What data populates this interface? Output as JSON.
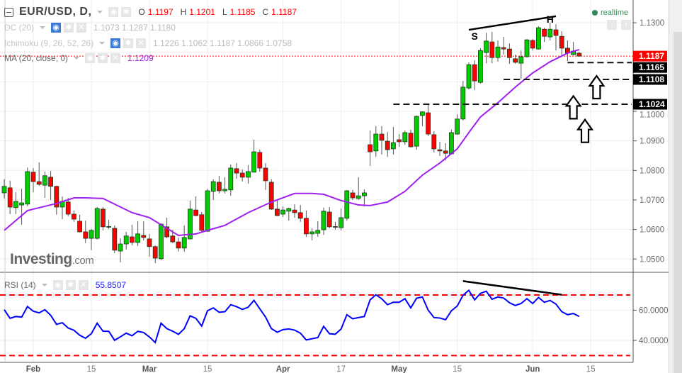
{
  "header": {
    "symbol": "EUR/USD, D,",
    "o_label": "O",
    "o": "1.1197",
    "h_label": "H",
    "h": "1.1201",
    "l_label": "L",
    "l": "1.1185",
    "c_label": "C",
    "c": "1.1187"
  },
  "indicators": {
    "dc": {
      "name": "DC (20)",
      "values": "1.1073 1.1287 1.1180"
    },
    "ichimoku": {
      "name": "Ichimoku (9, 26, 52, 26)",
      "values": "1.1226 1.1062 1.1187 1.0866 1.0758"
    },
    "ma": {
      "name": "MA (20, close, 0)",
      "value": "1.1209"
    },
    "rsi": {
      "name": "RSI (14)",
      "value": "55.8507"
    }
  },
  "realtime": "realtime",
  "logo": {
    "main": "Investing",
    "suffix": ".com"
  },
  "icons": {
    "eye": "eye-icon",
    "gear": "gear-icon",
    "close": "close-icon",
    "collapse": "minus-square-icon",
    "dropdown": "caret-down-icon",
    "arrow_down": "arrow-down-icon",
    "arrow_updown": "arrows-vertical-icon"
  },
  "colors": {
    "up": "#00cc00",
    "down": "#ff0000",
    "ma": "#a020f0",
    "rsi": "#0000ff",
    "rsi_levels": "#ff0000",
    "current_price": "#ff0000"
  },
  "chart_data": {
    "type": "candlestick",
    "price_axis": {
      "range": [
        1.0455,
        1.1377
      ],
      "ticks": [
        "1.1300",
        "1.1000",
        "1.0900",
        "1.0800",
        "1.0700",
        "1.0600",
        "1.0500"
      ],
      "grid_values": [
        1.13,
        1.12,
        1.11,
        1.1,
        1.09,
        1.08,
        1.07,
        1.06,
        1.05
      ]
    },
    "price_labels": [
      {
        "value": 1.1187,
        "text": "1.1187",
        "style": "current"
      },
      {
        "value": 1.1165,
        "text": "1.1165",
        "style": "level"
      },
      {
        "value": 1.1108,
        "text": "1.1108",
        "style": "level"
      },
      {
        "value": 1.1024,
        "text": "1.1024",
        "style": "level"
      }
    ],
    "time_ticks": [
      {
        "date": "2017-02-01",
        "text": "Feb",
        "major": true
      },
      {
        "date": "2017-02-15",
        "text": "15",
        "major": false
      },
      {
        "date": "2017-03-01",
        "text": "Mar",
        "major": true
      },
      {
        "date": "2017-03-15",
        "text": "15",
        "major": false
      },
      {
        "date": "2017-04-03",
        "text": "Apr",
        "major": true
      },
      {
        "date": "2017-04-17",
        "text": "17",
        "major": false
      },
      {
        "date": "2017-05-01",
        "text": "May",
        "major": true
      },
      {
        "date": "2017-05-15",
        "text": "15",
        "major": false
      },
      {
        "date": "2017-06-01",
        "text": "Jun",
        "major": true
      },
      {
        "date": "2017-06-15",
        "text": "15",
        "major": false
      }
    ],
    "candles_fields": [
      "date",
      "open",
      "high",
      "low",
      "close"
    ],
    "candles": [
      [
        "2017-01-25",
        1.0724,
        1.077,
        1.0705,
        1.0746
      ],
      [
        "2017-01-26",
        1.0741,
        1.0765,
        1.0652,
        1.0676
      ],
      [
        "2017-01-27",
        1.0674,
        1.0726,
        1.0652,
        1.0695
      ],
      [
        "2017-01-30",
        1.0683,
        1.0738,
        1.0616,
        1.069
      ],
      [
        "2017-01-31",
        1.0686,
        1.081,
        1.0678,
        1.0796
      ],
      [
        "2017-02-01",
        1.0794,
        1.0808,
        1.0726,
        1.0762
      ],
      [
        "2017-02-02",
        1.0762,
        1.0827,
        1.0748,
        1.0753
      ],
      [
        "2017-02-03",
        1.075,
        1.0796,
        1.0707,
        1.0782
      ],
      [
        "2017-02-06",
        1.0777,
        1.0798,
        1.07,
        1.0746
      ],
      [
        "2017-02-07",
        1.0746,
        1.0748,
        1.065,
        1.0676
      ],
      [
        "2017-02-08",
        1.0676,
        1.0712,
        1.0635,
        1.0695
      ],
      [
        "2017-02-09",
        1.0693,
        1.0707,
        1.0645,
        1.0652
      ],
      [
        "2017-02-10",
        1.0652,
        1.0664,
        1.0626,
        1.0635
      ],
      [
        "2017-02-13",
        1.0628,
        1.065,
        1.059,
        1.0592
      ],
      [
        "2017-02-14",
        1.0592,
        1.063,
        1.0554,
        1.057
      ],
      [
        "2017-02-15",
        1.057,
        1.0602,
        1.053,
        1.0597
      ],
      [
        "2017-02-16",
        1.057,
        1.0676,
        1.0566,
        1.0671
      ],
      [
        "2017-02-17",
        1.0669,
        1.0676,
        1.0597,
        1.0609
      ],
      [
        "2017-02-20",
        1.0609,
        1.0633,
        1.0602,
        1.061
      ],
      [
        "2017-02-21",
        1.0604,
        1.0614,
        1.052,
        1.053
      ],
      [
        "2017-02-22",
        1.0527,
        1.057,
        1.0489,
        1.0551
      ],
      [
        "2017-02-23",
        1.0551,
        1.0592,
        1.0532,
        1.0578
      ],
      [
        "2017-02-24",
        1.0575,
        1.0616,
        1.0546,
        1.0556
      ],
      [
        "2017-02-27",
        1.0556,
        1.0628,
        1.0544,
        1.0585
      ],
      [
        "2017-02-28",
        1.058,
        1.0628,
        1.0563,
        1.0573
      ],
      [
        "2017-03-01",
        1.0568,
        1.0585,
        1.0508,
        1.0542
      ],
      [
        "2017-03-02",
        1.0542,
        1.0546,
        1.0486,
        1.0503
      ],
      [
        "2017-03-03",
        1.0501,
        1.0621,
        1.0496,
        1.0618
      ],
      [
        "2017-03-06",
        1.0609,
        1.064,
        1.057,
        1.0575
      ],
      [
        "2017-03-07",
        1.0578,
        1.0599,
        1.0554,
        1.0558
      ],
      [
        "2017-03-08",
        1.0558,
        1.0573,
        1.0525,
        1.0537
      ],
      [
        "2017-03-09",
        1.0537,
        1.0614,
        1.0525,
        1.0573
      ],
      [
        "2017-03-10",
        1.0568,
        1.0698,
        1.0566,
        1.0669
      ],
      [
        "2017-03-13",
        1.0666,
        1.0712,
        1.0645,
        1.0647
      ],
      [
        "2017-03-14",
        1.065,
        1.0659,
        1.0592,
        1.0597
      ],
      [
        "2017-03-15",
        1.0594,
        1.0738,
        1.0592,
        1.0731
      ],
      [
        "2017-03-16",
        1.0729,
        1.077,
        1.07,
        1.0762
      ],
      [
        "2017-03-17",
        1.076,
        1.0782,
        1.0722,
        1.0731
      ],
      [
        "2017-03-20",
        1.0731,
        1.0777,
        1.0722,
        1.0736
      ],
      [
        "2017-03-21",
        1.0734,
        1.082,
        1.0714,
        1.0808
      ],
      [
        "2017-03-22",
        1.0806,
        1.0825,
        1.0772,
        1.0791
      ],
      [
        "2017-03-23",
        1.0791,
        1.0803,
        1.0762,
        1.0777
      ],
      [
        "2017-03-24",
        1.0777,
        1.0818,
        1.0755,
        1.0796
      ],
      [
        "2017-03-27",
        1.0794,
        1.0904,
        1.0794,
        1.0863
      ],
      [
        "2017-03-28",
        1.0861,
        1.087,
        1.0796,
        1.0808
      ],
      [
        "2017-03-29",
        1.0808,
        1.0825,
        1.0734,
        1.0765
      ],
      [
        "2017-03-30",
        1.076,
        1.077,
        1.0666,
        1.0669
      ],
      [
        "2017-03-31",
        1.0669,
        1.0702,
        1.0645,
        1.0647
      ],
      [
        "2017-04-03",
        1.0652,
        1.0678,
        1.0642,
        1.0666
      ],
      [
        "2017-04-04",
        1.0662,
        1.0674,
        1.063,
        1.0671
      ],
      [
        "2017-04-05",
        1.0666,
        1.0686,
        1.064,
        1.0657
      ],
      [
        "2017-04-06",
        1.0657,
        1.0683,
        1.0626,
        1.0638
      ],
      [
        "2017-04-07",
        1.0638,
        1.0664,
        1.0575,
        1.0585
      ],
      [
        "2017-04-10",
        1.0585,
        1.0604,
        1.0563,
        1.0592
      ],
      [
        "2017-04-11",
        1.0587,
        1.0628,
        1.0575,
        1.0597
      ],
      [
        "2017-04-12",
        1.0599,
        1.0674,
        1.0582,
        1.0662
      ],
      [
        "2017-04-13",
        1.0659,
        1.0676,
        1.0604,
        1.0609
      ],
      [
        "2017-04-14",
        1.061,
        1.0626,
        1.06,
        1.0609
      ],
      [
        "2017-04-17",
        1.0606,
        1.0671,
        1.0597,
        1.064
      ],
      [
        "2017-04-18",
        1.0638,
        1.0734,
        1.063,
        1.0731
      ],
      [
        "2017-04-19",
        1.0724,
        1.0734,
        1.07,
        1.0707
      ],
      [
        "2017-04-20",
        1.0705,
        1.0777,
        1.07,
        1.0714
      ],
      [
        "2017-04-21",
        1.0714,
        1.0736,
        1.0678,
        1.0724
      ],
      [
        "2017-04-24",
        1.0887,
        1.0935,
        1.0815,
        1.0863
      ],
      [
        "2017-04-25",
        1.0866,
        1.095,
        1.0846,
        1.0923
      ],
      [
        "2017-04-26",
        1.0923,
        1.095,
        1.0854,
        1.0902
      ],
      [
        "2017-04-27",
        1.0899,
        1.093,
        1.0846,
        1.087
      ],
      [
        "2017-04-28",
        1.0873,
        1.0947,
        1.0854,
        1.0894
      ],
      [
        "2017-05-01",
        1.0904,
        1.0923,
        1.088,
        1.0897
      ],
      [
        "2017-05-02",
        1.0897,
        1.0935,
        1.0887,
        1.0928
      ],
      [
        "2017-05-03",
        1.0926,
        1.0938,
        1.0878,
        1.088
      ],
      [
        "2017-05-04",
        1.0882,
        1.0986,
        1.087,
        1.0983
      ],
      [
        "2017-05-05",
        1.0986,
        1.1,
        1.095,
        1.0998
      ],
      [
        "2017-05-08",
        1.0995,
        1.1024,
        1.0916,
        1.0923
      ],
      [
        "2017-05-09",
        1.0921,
        1.0933,
        1.0861,
        1.0873
      ],
      [
        "2017-05-10",
        1.087,
        1.0897,
        1.0849,
        1.0866
      ],
      [
        "2017-05-11",
        1.0866,
        1.0892,
        1.0834,
        1.0858
      ],
      [
        "2017-05-12",
        1.0856,
        1.0938,
        1.0854,
        1.0928
      ],
      [
        "2017-05-15",
        1.0923,
        1.099,
        1.0921,
        1.0974
      ],
      [
        "2017-05-16",
        1.0974,
        1.1103,
        1.0969,
        1.1082
      ],
      [
        "2017-05-17",
        1.1079,
        1.1166,
        1.1074,
        1.1158
      ],
      [
        "2017-05-18",
        1.1158,
        1.1173,
        1.1072,
        1.1103
      ],
      [
        "2017-05-19",
        1.1098,
        1.1214,
        1.1094,
        1.1206
      ],
      [
        "2017-05-22",
        1.1199,
        1.1266,
        1.1163,
        1.1238
      ],
      [
        "2017-05-23",
        1.1235,
        1.1269,
        1.1163,
        1.1182
      ],
      [
        "2017-05-24",
        1.1182,
        1.124,
        1.1168,
        1.1218
      ],
      [
        "2017-05-25",
        1.1216,
        1.1252,
        1.1192,
        1.1211
      ],
      [
        "2017-05-26",
        1.1211,
        1.123,
        1.1161,
        1.1182
      ],
      [
        "2017-05-29",
        1.1178,
        1.1192,
        1.1161,
        1.1166
      ],
      [
        "2017-05-30",
        1.1163,
        1.1206,
        1.111,
        1.1185
      ],
      [
        "2017-05-31",
        1.1185,
        1.1245,
        1.1182,
        1.1242
      ],
      [
        "2017-06-01",
        1.124,
        1.1245,
        1.1206,
        1.1214
      ],
      [
        "2017-06-02",
        1.1211,
        1.1288,
        1.1209,
        1.1283
      ],
      [
        "2017-06-05",
        1.1278,
        1.1283,
        1.1235,
        1.1254
      ],
      [
        "2017-06-06",
        1.1252,
        1.13,
        1.124,
        1.1278
      ],
      [
        "2017-06-07",
        1.1276,
        1.1295,
        1.1206,
        1.1257
      ],
      [
        "2017-06-08",
        1.1254,
        1.1271,
        1.119,
        1.1214
      ],
      [
        "2017-06-09",
        1.1214,
        1.124,
        1.117,
        1.1197
      ],
      [
        "2017-06-12",
        1.1192,
        1.1235,
        1.119,
        1.1204
      ],
      [
        "2017-06-13",
        1.1197,
        1.1201,
        1.1185,
        1.1187
      ]
    ],
    "ma20": [
      [
        "2017-01-25",
        1.0597
      ],
      [
        "2017-01-31",
        1.0664
      ],
      [
        "2017-02-07",
        1.0688
      ],
      [
        "2017-02-10",
        1.0707
      ],
      [
        "2017-02-14",
        1.0707
      ],
      [
        "2017-02-17",
        1.0705
      ],
      [
        "2017-02-24",
        1.0657
      ],
      [
        "2017-03-01",
        1.064
      ],
      [
        "2017-03-03",
        1.0616
      ],
      [
        "2017-03-08",
        1.058
      ],
      [
        "2017-03-13",
        1.0585
      ],
      [
        "2017-03-15",
        1.0597
      ],
      [
        "2017-03-20",
        1.0614
      ],
      [
        "2017-03-24",
        1.0657
      ],
      [
        "2017-03-30",
        1.0693
      ],
      [
        "2017-04-05",
        1.0722
      ],
      [
        "2017-04-10",
        1.0722
      ],
      [
        "2017-04-12",
        1.0719
      ],
      [
        "2017-04-17",
        1.0698
      ],
      [
        "2017-04-20",
        1.0683
      ],
      [
        "2017-04-24",
        1.0681
      ],
      [
        "2017-04-27",
        1.0693
      ],
      [
        "2017-05-02",
        1.0729
      ],
      [
        "2017-05-05",
        1.0784
      ],
      [
        "2017-05-10",
        1.0825
      ],
      [
        "2017-05-15",
        1.0873
      ],
      [
        "2017-05-17",
        1.0928
      ],
      [
        "2017-05-19",
        1.0981
      ],
      [
        "2017-05-24",
        1.1029
      ],
      [
        "2017-05-29",
        1.1082
      ],
      [
        "2017-06-01",
        1.113
      ],
      [
        "2017-06-06",
        1.1168
      ],
      [
        "2017-06-09",
        1.1197
      ],
      [
        "2017-06-13",
        1.1209
      ]
    ],
    "rsi": {
      "range": [
        25.5,
        85
      ],
      "ticks": [
        "60.0000",
        "40.0000"
      ],
      "grid_values": [
        60,
        40
      ],
      "levels": [
        70,
        30
      ],
      "values": [
        60.3,
        54.6,
        55.8,
        55.4,
        62.4,
        59.3,
        58.2,
        60.3,
        56.6,
        50.6,
        51.7,
        48.2,
        46.7,
        43.4,
        41.4,
        44.5,
        51.4,
        46.1,
        46.0,
        40.1,
        42.4,
        44.8,
        43.1,
        46.0,
        45.2,
        42.3,
        38.6,
        51.4,
        47.8,
        46.1,
        44.0,
        47.8,
        56.2,
        54.6,
        49.5,
        59.6,
        61.5,
        58.6,
        59.0,
        63.6,
        62.3,
        60.5,
        61.9,
        66.5,
        60.9,
        55.4,
        47.8,
        45.4,
        47.1,
        47.6,
        46.8,
        44.8,
        40.3,
        41.1,
        41.9,
        49.3,
        44.4,
        44.1,
        47.5,
        57.0,
        54.3,
        55.1,
        55.8,
        66.8,
        70.2,
        67.5,
        63.6,
        65.2,
        65.2,
        67.6,
        61.5,
        67.9,
        68.7,
        60.0,
        55.1,
        54.8,
        53.7,
        59.6,
        62.7,
        69.8,
        73.1,
        66.8,
        71.1,
        72.5,
        67.2,
        68.7,
        68.0,
        64.9,
        63.1,
        64.4,
        67.6,
        64.4,
        68.4,
        65.2,
        66.4,
        64.0,
        59.0,
        57.0,
        57.8,
        55.85
      ]
    },
    "drawings": {
      "price_trendline": [
        [
          "2017-05-17",
          1.1276
        ],
        [
          "2017-06-07",
          1.1322
        ]
      ],
      "shoulder_label": {
        "text": "S",
        "date": "2017-05-18",
        "price": 1.1243
      },
      "head_label": {
        "text": "H",
        "date": "2017-06-06",
        "price": 1.13
      },
      "support_lines": [
        {
          "from": "2017-06-09",
          "price": 1.1165
        },
        {
          "from": "2017-05-25",
          "price": 1.1108
        },
        {
          "from": "2017-04-28",
          "price": 1.1024
        }
      ],
      "up_arrows": [
        {
          "date": "2017-06-16",
          "price": 1.112
        },
        {
          "date": "2017-06-12",
          "price": 1.1052
        },
        {
          "date": "2017-06-14",
          "price": 1.0972
        }
      ],
      "rsi_trendline": [
        [
          "2017-05-16",
          79.2
        ],
        [
          "2017-06-08",
          70.2
        ]
      ]
    }
  }
}
